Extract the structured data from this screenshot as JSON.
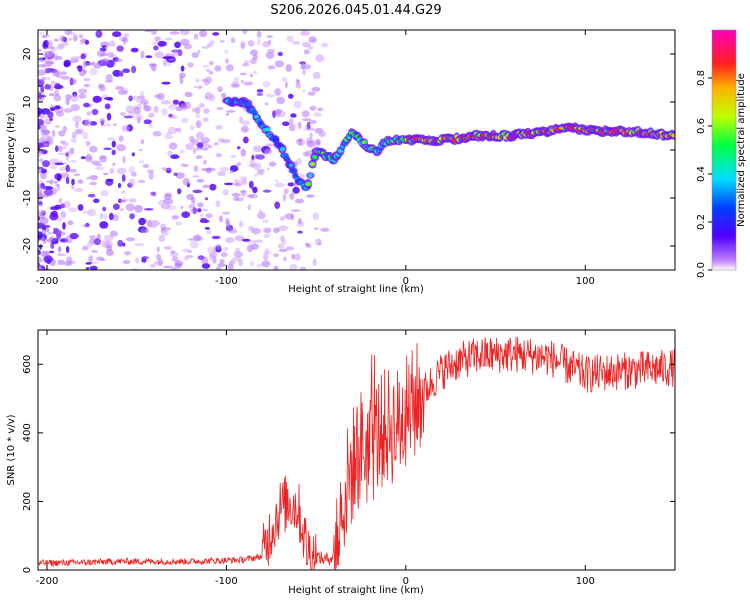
{
  "title": "S206.2026.045.01.44.G29",
  "colors": {
    "snr_line": "#ee2222",
    "frame": "#000000",
    "background": "#ffffff"
  },
  "chart_data": [
    {
      "type": "heatmap",
      "name": "spectrogram",
      "xlabel": "Height of straight line (km)",
      "ylabel": "Frequency (Hz)",
      "xlim": [
        -205,
        150
      ],
      "ylim": [
        -25,
        25
      ],
      "x_ticks": [
        -200,
        -100,
        0,
        100
      ],
      "y_ticks": [
        -20,
        -10,
        0,
        10,
        20
      ],
      "ridge": {
        "description_values": "dominant frequency (Hz) vs height (km)",
        "x": [
          -100,
          -95,
          -90,
          -85,
          -80,
          -75,
          -70,
          -65,
          -60,
          -55,
          -50,
          -45,
          -40,
          -35,
          -30,
          -25,
          -20,
          -15,
          -10,
          -5,
          0,
          10,
          20,
          40,
          60,
          80,
          90,
          100,
          120,
          150
        ],
        "y": [
          10,
          10,
          10,
          8,
          5,
          3,
          1,
          -3,
          -6,
          -8,
          0,
          -1,
          -2,
          1,
          4,
          2,
          0,
          0,
          2,
          2,
          2,
          2,
          2,
          3,
          3,
          4,
          5,
          4,
          4,
          3
        ]
      },
      "colorbar": {
        "label": "Normalized spectral amplitude",
        "range": [
          0,
          1
        ],
        "ticks": [
          "0.0",
          "0.2",
          "0.4",
          "0.6",
          "0.8"
        ]
      }
    },
    {
      "type": "line",
      "name": "snr",
      "xlabel": "Height of straight line (km)",
      "ylabel": "SNR (10 * v/v)",
      "xlim": [
        -205,
        150
      ],
      "ylim": [
        0,
        700
      ],
      "x_ticks": [
        -200,
        -100,
        0,
        100
      ],
      "y_ticks": [
        0,
        200,
        400,
        600
      ],
      "series": [
        {
          "name": "SNR",
          "x": [
            -205,
            -180,
            -160,
            -140,
            -120,
            -100,
            -90,
            -80,
            -75,
            -70,
            -65,
            -60,
            -55,
            -50,
            -45,
            -40,
            -35,
            -30,
            -25,
            -20,
            -15,
            -10,
            -5,
            0,
            10,
            20,
            30,
            40,
            60,
            80,
            100,
            120,
            150
          ],
          "y": [
            20,
            22,
            25,
            25,
            25,
            28,
            30,
            40,
            120,
            180,
            200,
            180,
            60,
            40,
            30,
            40,
            200,
            300,
            360,
            350,
            400,
            420,
            420,
            450,
            520,
            580,
            610,
            625,
            630,
            620,
            570,
            580,
            590
          ]
        }
      ]
    }
  ]
}
